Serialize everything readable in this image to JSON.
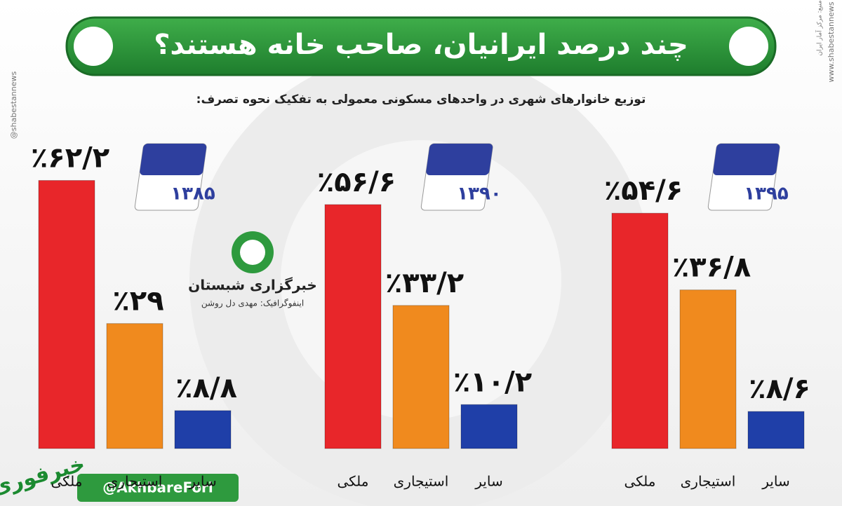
{
  "chart_data": {
    "type": "bar",
    "title": "چند درصد ایرانیان، صاحب خانه هستند؟",
    "subtitle": "توزیع خانوارهای شهری در واحدهای مسکونی معمولی به تفکیک نحوه تصرف:",
    "categories": [
      "۱۳۸۵",
      "۱۳۹۰",
      "۱۳۹۵"
    ],
    "series": [
      {
        "name": "ملکی",
        "color": "#e8262a",
        "values": [
          62.2,
          56.6,
          54.6
        ],
        "value_labels": [
          "٪۶۲/۲",
          "٪۵۶/۶",
          "٪۵۴/۶"
        ]
      },
      {
        "name": "استیجاری",
        "color": "#f08a1e",
        "values": [
          29,
          33.2,
          36.8
        ],
        "value_labels": [
          "٪۲۹",
          "٪۳۳/۲",
          "٪۳۶/۸"
        ]
      },
      {
        "name": "سایر",
        "color": "#1f3fa8",
        "values": [
          8.8,
          10.2,
          8.6
        ],
        "value_labels": [
          "٪۸/۸",
          "٪۱۰/۲",
          "٪۸/۶"
        ]
      }
    ]
  },
  "branding": {
    "agency": "خبرگزاری شبستان",
    "credit": "اینفوگرافیک: مهدی دل روشن",
    "handle": "@AkhbareFori",
    "site": "www.shabestannews",
    "social": "@shabestannews",
    "source": "منبع: مرکز آمار ایران",
    "channel": "خبرفوری"
  }
}
